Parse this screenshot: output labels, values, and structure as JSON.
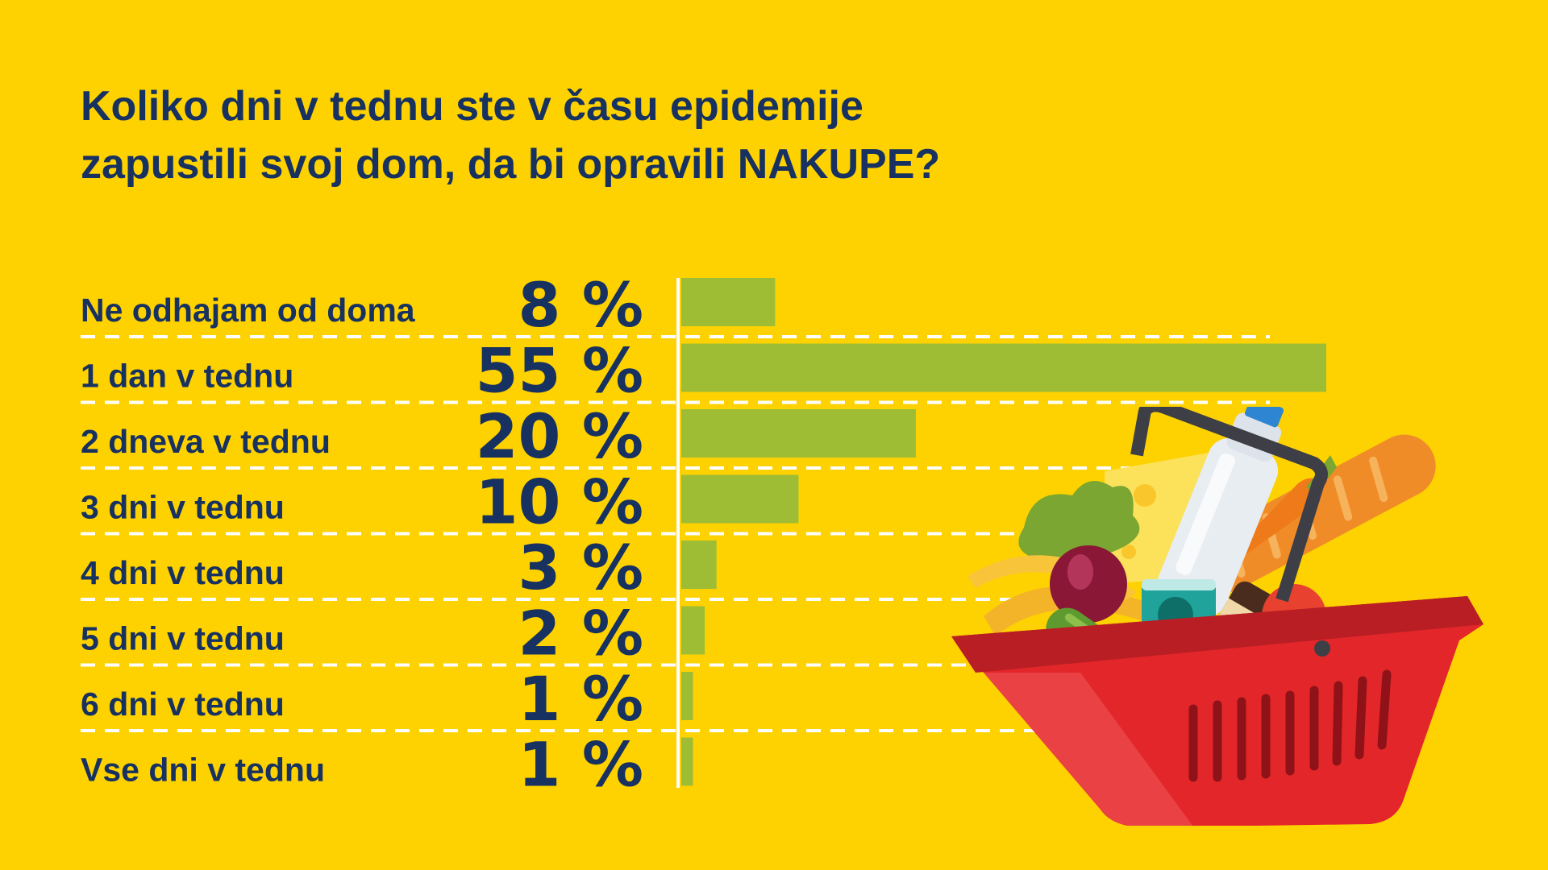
{
  "title": {
    "line1": "Koliko dni v tednu ste v času epidemije",
    "line2": "zapustili svoj dom, da bi opravili NAKUPE?"
  },
  "colors": {
    "background": "#FED200",
    "text": "#173160",
    "bar": "#9EBD35",
    "divider": "#FFFFFF",
    "basket": "#E3262A"
  },
  "chart_data": {
    "type": "bar",
    "orientation": "horizontal",
    "value_suffix": " %",
    "xlim": [
      0,
      55
    ],
    "grid": false,
    "categories": [
      "Ne odhajam od doma",
      "1 dan v tednu",
      "2 dneva v tednu",
      "3 dni v tednu",
      "4 dni v tednu",
      "5 dni v tednu",
      "6 dni v tednu",
      "Vse dni v tednu"
    ],
    "values": [
      8,
      55,
      20,
      10,
      3,
      2,
      1,
      1
    ]
  },
  "illustration": {
    "icon": "shopping-basket-icon"
  }
}
